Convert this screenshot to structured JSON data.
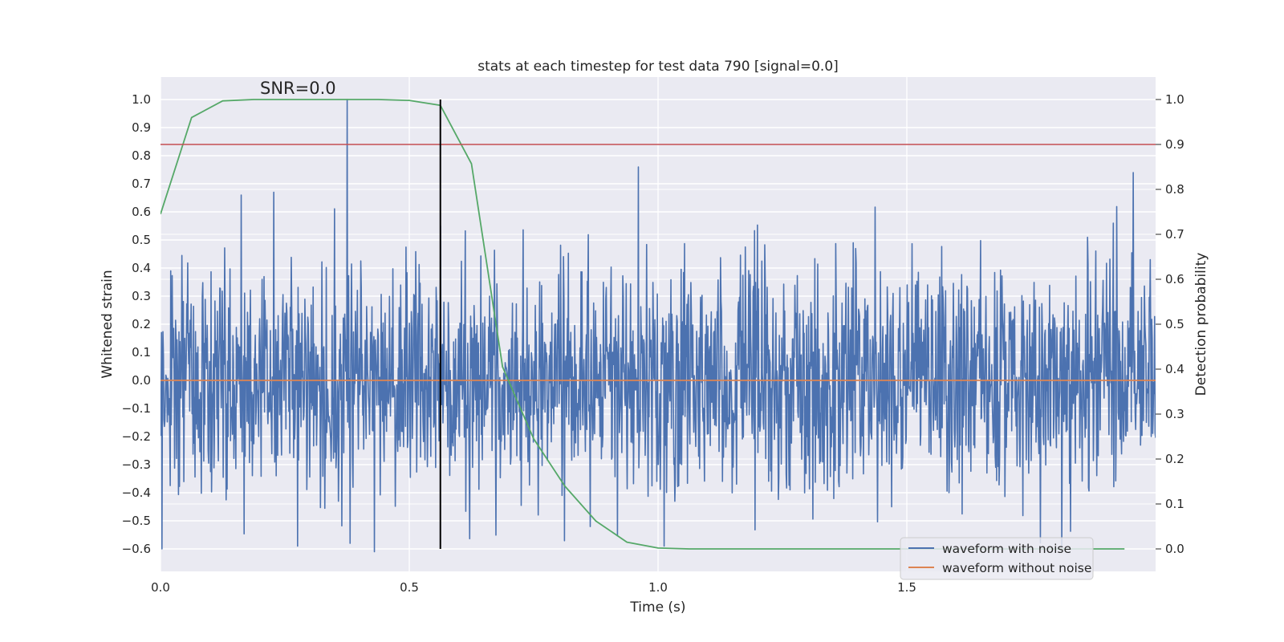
{
  "chart_data": {
    "type": "line",
    "title": "stats at each timestep for test data 790 [signal=0.0]",
    "xlabel": "Time (s)",
    "ylabel": "Whitened strain",
    "y2label": "Detection probability",
    "xlim": [
      0.0,
      2.0
    ],
    "ylim": [
      -0.68,
      1.08
    ],
    "y2lim": [
      -0.05,
      1.05
    ],
    "x_ticks": [
      0.0,
      0.5,
      1.0,
      1.5
    ],
    "x_tick_labels": [
      "0.0",
      "0.5",
      "1.0",
      "1.5"
    ],
    "y_ticks": [
      -0.6,
      -0.5,
      -0.4,
      -0.3,
      -0.2,
      -0.1,
      0.0,
      0.1,
      0.2,
      0.3,
      0.4,
      0.5,
      0.6,
      0.7,
      0.8,
      0.9,
      1.0
    ],
    "y_tick_labels": [
      "−0.6",
      "−0.5",
      "−0.4",
      "−0.3",
      "−0.2",
      "−0.1",
      "0.0",
      "0.1",
      "0.2",
      "0.3",
      "0.4",
      "0.5",
      "0.6",
      "0.7",
      "0.8",
      "0.9",
      "1.0"
    ],
    "y2_ticks": [
      0.0,
      0.1,
      0.2,
      0.3,
      0.4,
      0.5,
      0.6,
      0.7,
      0.8,
      0.9,
      1.0
    ],
    "y2_tick_labels": [
      "0.0",
      "0.1",
      "0.2",
      "0.3",
      "0.4",
      "0.5",
      "0.6",
      "0.7",
      "0.8",
      "0.9",
      "1.0"
    ],
    "annotation": "SNR=0.0",
    "annotation_pos": {
      "x": 0.2,
      "y": 1.02
    },
    "series": [
      {
        "name": "waveform with noise",
        "color": "#4c72b0",
        "axis": "left",
        "kind": "noise",
        "n_points": 2048,
        "x_range": [
          0.0,
          2.0
        ],
        "seed": 790,
        "std": 0.2,
        "clip": [
          -0.6,
          0.78
        ],
        "spikes": [
          {
            "x": 0.375,
            "y": 1.0
          },
          {
            "x": 0.43,
            "y": -0.61
          },
          {
            "x": 0.96,
            "y": 0.76
          },
          {
            "x": 0.563,
            "y": 0.55
          },
          {
            "x": 1.012,
            "y": -0.59
          },
          {
            "x": 1.955,
            "y": 0.74
          },
          {
            "x": 1.915,
            "y": 0.56
          },
          {
            "x": 0.276,
            "y": -0.59
          },
          {
            "x": 0.381,
            "y": -0.58
          },
          {
            "x": 0.162,
            "y": 0.66
          },
          {
            "x": 0.2275,
            "y": 0.67
          }
        ]
      },
      {
        "name": "waveform without noise",
        "color": "#dd8452",
        "axis": "left",
        "x": [
          0.0,
          2.0
        ],
        "y": [
          0.0,
          0.0
        ]
      },
      {
        "name": "detection probability",
        "color": "#55a868",
        "axis": "right",
        "x": [
          0.0,
          0.0625,
          0.125,
          0.1875,
          0.25,
          0.3125,
          0.375,
          0.4375,
          0.5,
          0.5625,
          0.625,
          0.6875,
          0.75,
          0.8125,
          0.875,
          0.9375,
          1.0,
          1.0625,
          1.125,
          1.1875,
          1.25,
          1.3125,
          1.375,
          1.4375,
          1.5,
          1.5625,
          1.625,
          1.6875,
          1.75,
          1.8125,
          1.875,
          1.9375
        ],
        "y": [
          0.745,
          0.96,
          0.997,
          1.0,
          1.0,
          1.0,
          1.0,
          1.0,
          0.998,
          0.987,
          0.857,
          0.405,
          0.245,
          0.14,
          0.062,
          0.015,
          0.002,
          0.0,
          0.0,
          0.0,
          0.0,
          0.0,
          0.0,
          0.0,
          0.0,
          0.0,
          0.0,
          0.0,
          0.0,
          0.0,
          0.0,
          0.0
        ]
      }
    ],
    "threshold_line": {
      "axis": "right",
      "y": 0.9,
      "color": "#c44e52"
    },
    "vertical_line": {
      "x": 0.5625,
      "y_from": -0.6,
      "y_to": 1.0,
      "color": "#000000"
    },
    "legend": {
      "placement": "lower-right",
      "entries": [
        {
          "label": "waveform with noise",
          "color": "#4c72b0"
        },
        {
          "label": "waveform without noise",
          "color": "#dd8452"
        }
      ]
    }
  }
}
